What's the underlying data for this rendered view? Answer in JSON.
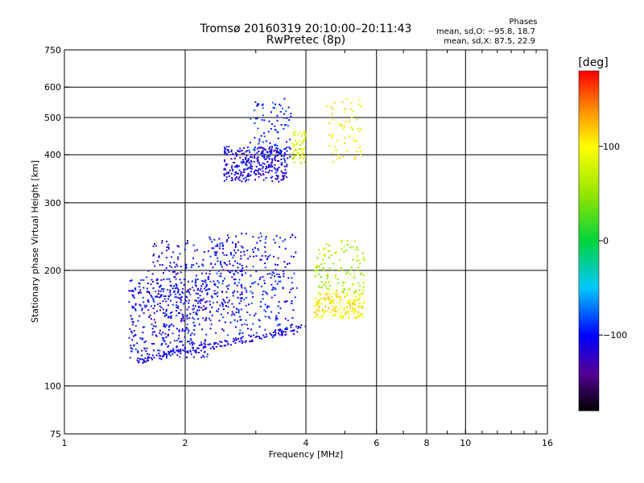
{
  "title_line1": "Tromsø 20160319 20:10:00–20:11:43",
  "title_line2": "RwPretec (8p)",
  "stats": {
    "heading": "Phases",
    "line1": "mean, sd,O: −95.8, 18.7",
    "line2": "mean, sd,X:  87.5, 22.9"
  },
  "colorbar": {
    "title": "[deg]",
    "ticks": [
      {
        "value": 100,
        "label": "100"
      },
      {
        "value": 0,
        "label": "0"
      },
      {
        "value": -100,
        "label": "−100"
      }
    ],
    "range": [
      -180,
      180
    ]
  },
  "chart_data": {
    "type": "scatter",
    "xlabel": "Frequency [MHz]",
    "ylabel": "Stationary phase Virtual Height [km]",
    "xscale": "log",
    "yscale": "log",
    "xlim": [
      1,
      16
    ],
    "ylim": [
      75,
      750
    ],
    "xticks": [
      1,
      2,
      4,
      6,
      8,
      10,
      16
    ],
    "xtick_labels": [
      "1",
      "2",
      "4",
      "6",
      "8",
      "10",
      "16"
    ],
    "xgrid": [
      2,
      4,
      6,
      8,
      10
    ],
    "yticks": [
      75,
      100,
      200,
      300,
      400,
      500,
      600,
      750
    ],
    "ytick_labels": [
      "75",
      "100",
      "200",
      "300",
      "400",
      "500",
      "600",
      "750"
    ],
    "ygrid": [
      100,
      200,
      300,
      400,
      500,
      600
    ],
    "color_by": "phase [deg]",
    "clusters": [
      {
        "f": [
          1.45,
          2.3
        ],
        "h": [
          118,
          190
        ],
        "phase": -105,
        "n": 380
      },
      {
        "f": [
          1.6,
          2.8
        ],
        "h": [
          150,
          240
        ],
        "phase": -110,
        "n": 250
      },
      {
        "f": [
          2.3,
          3.8
        ],
        "h": [
          135,
          250
        ],
        "phase": -100,
        "n": 300
      },
      {
        "f": [
          2.5,
          3.6
        ],
        "h": [
          340,
          420
        ],
        "phase": -110,
        "n": 320
      },
      {
        "f": [
          2.9,
          3.7
        ],
        "h": [
          390,
          560
        ],
        "phase": -95,
        "n": 90
      },
      {
        "f": [
          3.7,
          4.0
        ],
        "h": [
          380,
          460
        ],
        "phase": 80,
        "n": 60
      },
      {
        "f": [
          4.2,
          5.6
        ],
        "h": [
          150,
          175
        ],
        "phase": 105,
        "n": 170
      },
      {
        "f": [
          4.2,
          5.6
        ],
        "h": [
          175,
          240
        ],
        "phase": 60,
        "n": 120
      },
      {
        "f": [
          4.5,
          5.5
        ],
        "h": [
          380,
          560
        ],
        "phase": 100,
        "n": 60
      }
    ],
    "lower_trace": {
      "f0": 1.5,
      "h0": 116,
      "f1": 4.0,
      "h1": 142,
      "phase": -110,
      "n": 170
    }
  }
}
